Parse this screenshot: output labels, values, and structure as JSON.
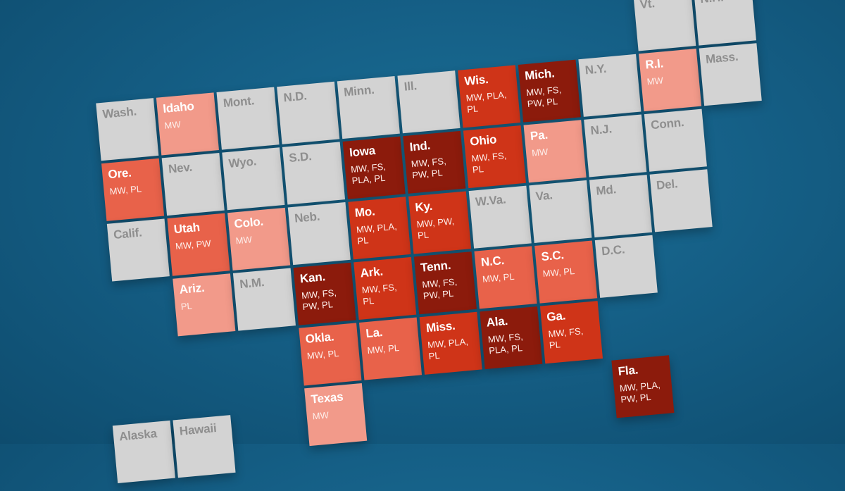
{
  "colors": {
    "background": "#155f86",
    "no_law": "#d3d3d3",
    "one_law_light": "#f29a8a",
    "two_laws": "#e8624a",
    "three_laws": "#cf3418",
    "four_laws": "#8c1b0c"
  },
  "states": [
    {
      "abbr": "Vt.",
      "laws": "",
      "col": 9,
      "row": 0,
      "level": 0
    },
    {
      "abbr": "N.H.",
      "laws": "",
      "col": 10,
      "row": 0,
      "level": 0
    },
    {
      "abbr": "Wash.",
      "laws": "",
      "col": 0,
      "row": 1,
      "level": 0
    },
    {
      "abbr": "Idaho",
      "laws": "MW",
      "col": 1,
      "row": 1,
      "level": 1
    },
    {
      "abbr": "Mont.",
      "laws": "",
      "col": 2,
      "row": 1,
      "level": 0
    },
    {
      "abbr": "N.D.",
      "laws": "",
      "col": 3,
      "row": 1,
      "level": 0
    },
    {
      "abbr": "Minn.",
      "laws": "",
      "col": 4,
      "row": 1,
      "level": 0
    },
    {
      "abbr": "Ill.",
      "laws": "",
      "col": 5,
      "row": 1,
      "level": 0
    },
    {
      "abbr": "Wis.",
      "laws": "MW, PLA, PL",
      "col": 6,
      "row": 1,
      "level": 3
    },
    {
      "abbr": "Mich.",
      "laws": "MW, FS, PW, PL",
      "col": 7,
      "row": 1,
      "level": 4
    },
    {
      "abbr": "N.Y.",
      "laws": "",
      "col": 8,
      "row": 1,
      "level": 0
    },
    {
      "abbr": "R.I.",
      "laws": "MW",
      "col": 9,
      "row": 1,
      "level": 1
    },
    {
      "abbr": "Mass.",
      "laws": "",
      "col": 10,
      "row": 1,
      "level": 0
    },
    {
      "abbr": "Ore.",
      "laws": "MW, PL",
      "col": 0,
      "row": 2,
      "level": 2
    },
    {
      "abbr": "Nev.",
      "laws": "",
      "col": 1,
      "row": 2,
      "level": 0
    },
    {
      "abbr": "Wyo.",
      "laws": "",
      "col": 2,
      "row": 2,
      "level": 0
    },
    {
      "abbr": "S.D.",
      "laws": "",
      "col": 3,
      "row": 2,
      "level": 0
    },
    {
      "abbr": "Iowa",
      "laws": "MW, FS, PLA, PL",
      "col": 4,
      "row": 2,
      "level": 4
    },
    {
      "abbr": "Ind.",
      "laws": "MW, FS, PW, PL",
      "col": 5,
      "row": 2,
      "level": 4
    },
    {
      "abbr": "Ohio",
      "laws": "MW, FS, PL",
      "col": 6,
      "row": 2,
      "level": 3
    },
    {
      "abbr": "Pa.",
      "laws": "MW",
      "col": 7,
      "row": 2,
      "level": 1
    },
    {
      "abbr": "N.J.",
      "laws": "",
      "col": 8,
      "row": 2,
      "level": 0
    },
    {
      "abbr": "Conn.",
      "laws": "",
      "col": 9,
      "row": 2,
      "level": 0
    },
    {
      "abbr": "Calif.",
      "laws": "",
      "col": 0,
      "row": 3,
      "level": 0
    },
    {
      "abbr": "Utah",
      "laws": "MW, PW",
      "col": 1,
      "row": 3,
      "level": 2
    },
    {
      "abbr": "Colo.",
      "laws": "MW",
      "col": 2,
      "row": 3,
      "level": 1
    },
    {
      "abbr": "Neb.",
      "laws": "",
      "col": 3,
      "row": 3,
      "level": 0
    },
    {
      "abbr": "Mo.",
      "laws": "MW, PLA, PL",
      "col": 4,
      "row": 3,
      "level": 3
    },
    {
      "abbr": "Ky.",
      "laws": "MW, PW, PL",
      "col": 5,
      "row": 3,
      "level": 3
    },
    {
      "abbr": "W.Va.",
      "laws": "",
      "col": 6,
      "row": 3,
      "level": 0
    },
    {
      "abbr": "Va.",
      "laws": "",
      "col": 7,
      "row": 3,
      "level": 0
    },
    {
      "abbr": "Md.",
      "laws": "",
      "col": 8,
      "row": 3,
      "level": 0
    },
    {
      "abbr": "Del.",
      "laws": "",
      "col": 9,
      "row": 3,
      "level": 0
    },
    {
      "abbr": "Ariz.",
      "laws": "PL",
      "col": 1,
      "row": 4,
      "level": 1
    },
    {
      "abbr": "N.M.",
      "laws": "",
      "col": 2,
      "row": 4,
      "level": 0
    },
    {
      "abbr": "Kan.",
      "laws": "MW, FS, PW, PL",
      "col": 3,
      "row": 4,
      "level": 4
    },
    {
      "abbr": "Ark.",
      "laws": "MW, FS, PL",
      "col": 4,
      "row": 4,
      "level": 3
    },
    {
      "abbr": "Tenn.",
      "laws": "MW, FS, PW, PL",
      "col": 5,
      "row": 4,
      "level": 4
    },
    {
      "abbr": "N.C.",
      "laws": "MW, PL",
      "col": 6,
      "row": 4,
      "level": 2
    },
    {
      "abbr": "S.C.",
      "laws": "MW, PL",
      "col": 7,
      "row": 4,
      "level": 2
    },
    {
      "abbr": "D.C.",
      "laws": "",
      "col": 8,
      "row": 4,
      "level": 0
    },
    {
      "abbr": "Okla.",
      "laws": "MW, PL",
      "col": 3,
      "row": 5,
      "level": 2
    },
    {
      "abbr": "La.",
      "laws": "MW, PL",
      "col": 4,
      "row": 5,
      "level": 2
    },
    {
      "abbr": "Miss.",
      "laws": "MW, PLA, PL",
      "col": 5,
      "row": 5,
      "level": 3
    },
    {
      "abbr": "Ala.",
      "laws": "MW, FS, PLA, PL",
      "col": 6,
      "row": 5,
      "level": 4
    },
    {
      "abbr": "Ga.",
      "laws": "MW, FS, PL",
      "col": 7,
      "row": 5,
      "level": 3
    },
    {
      "abbr": "Fla.",
      "laws": "MW, PLA, PW, PL",
      "col": 8,
      "row": 6,
      "level": 4
    },
    {
      "abbr": "Alaska",
      "laws": "",
      "col": 0,
      "row": 6,
      "level": 0
    },
    {
      "abbr": "Hawaii",
      "laws": "",
      "col": 1,
      "row": 6,
      "level": 0
    },
    {
      "abbr": "Texas",
      "laws": "MW",
      "col": 3,
      "row": 6,
      "level": 1
    }
  ]
}
